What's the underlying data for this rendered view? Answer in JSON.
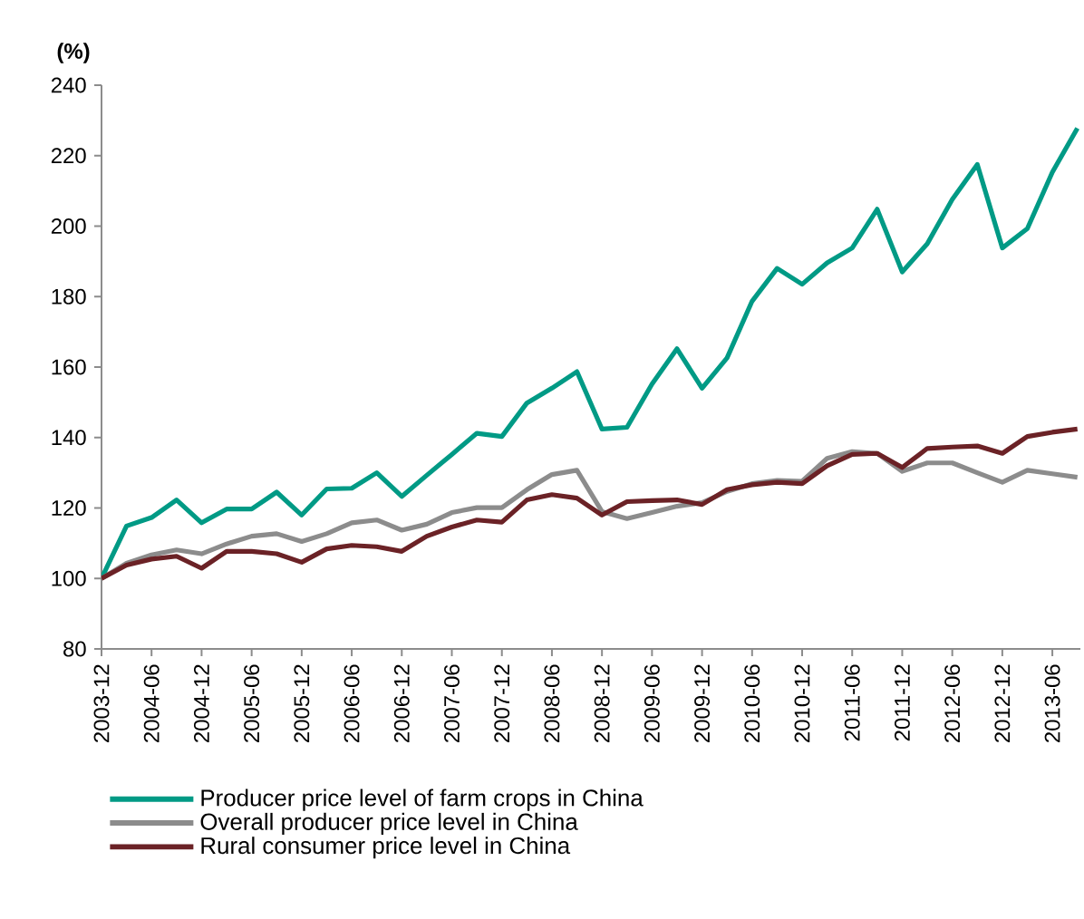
{
  "chart_data": {
    "type": "line",
    "ylabel": "(%)",
    "categories": [
      "2003-12",
      null,
      "2004-06",
      null,
      "2004-12",
      null,
      "2005-06",
      null,
      "2005-12",
      null,
      "2006-06",
      null,
      "2006-12",
      null,
      "2007-06",
      null,
      "2007-12",
      null,
      "2008-06",
      null,
      "2008-12",
      null,
      "2009-06",
      null,
      "2009-12",
      null,
      "2010-06",
      null,
      "2010-12",
      null,
      "2011-06",
      null,
      "2011-12",
      null,
      "2012-06",
      null,
      "2012-12",
      null,
      "2013-06",
      null
    ],
    "series": [
      {
        "name": "Producer price level of farm crops in China",
        "color": "#009a85",
        "values": [
          100,
          114.9,
          117.3,
          122.3,
          115.8,
          119.7,
          119.7,
          124.5,
          118,
          125.4,
          125.6,
          130,
          123.3,
          129.3,
          135.2,
          141.2,
          140.3,
          149.8,
          154,
          158.7,
          142.4,
          142.9,
          155.2,
          165.2,
          154,
          162.6,
          178.7,
          188,
          183.5,
          189.6,
          193.8,
          204.8,
          187,
          195,
          207.6,
          217.5,
          193.8,
          199.3,
          215.3,
          227.8
        ]
      },
      {
        "name": "Overall producer price level in China",
        "color": "#8c8c8c",
        "values": [
          100,
          104.3,
          106.7,
          108.1,
          107,
          109.8,
          112,
          112.7,
          110.5,
          112.7,
          115.8,
          116.6,
          113.7,
          115.4,
          118.7,
          120.1,
          120.1,
          125.2,
          129.5,
          130.7,
          119,
          117,
          118.7,
          120.5,
          121.5,
          124.7,
          126.9,
          127.8,
          127.6,
          134.1,
          136,
          135.5,
          130.4,
          132.8,
          132.8,
          130,
          127.3,
          130.7,
          129.7,
          128.7
        ]
      },
      {
        "name": "Rural consumer price level in China",
        "color": "#6b2226",
        "values": [
          100,
          103.8,
          105.5,
          106.3,
          102.9,
          107.7,
          107.7,
          107,
          104.6,
          108.4,
          109.4,
          109,
          107.7,
          112,
          114.6,
          116.6,
          116,
          122.3,
          123.8,
          122.8,
          118,
          121.8,
          122.1,
          122.3,
          121,
          125.2,
          126.6,
          127.3,
          126.9,
          132,
          135.2,
          135.5,
          131.5,
          136.9,
          137.3,
          137.6,
          135.5,
          140.3,
          141.5,
          142.4
        ]
      }
    ],
    "ylim": [
      80,
      240
    ],
    "yticks": [
      80,
      100,
      120,
      140,
      160,
      180,
      200,
      220,
      240
    ],
    "grid": false,
    "legend": "bottom",
    "marker": "none",
    "line_style": "solid"
  }
}
